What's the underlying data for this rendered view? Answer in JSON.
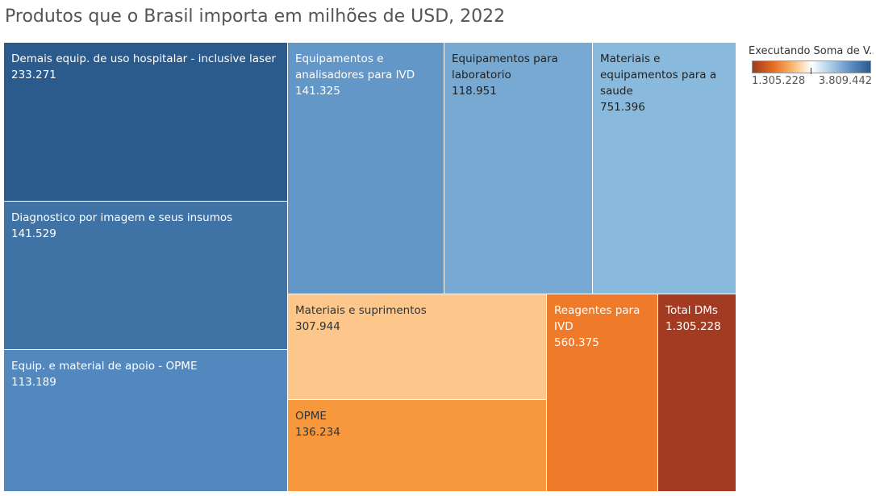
{
  "chart_data": {
    "type": "treemap",
    "title": "Produtos que o Brasil importa em milhões de USD, 2022",
    "tiles": [
      {
        "label": "Demais equip. de uso hospitalar - inclusive laser",
        "value": "233.271",
        "color": "#2b5b8c",
        "text_color": "#ffffff"
      },
      {
        "label": "Diagnostico por imagem e seus insumos",
        "value": "141.529",
        "color": "#3f73a6",
        "text_color": "#ffffff"
      },
      {
        "label": "Equip. e material de apoio - OPME",
        "value": "113.189",
        "color": "#5288bd",
        "text_color": "#ffffff"
      },
      {
        "label": "Equipamentos e analisadores para IVD",
        "value": "141.325",
        "color": "#6397c7",
        "text_color": "#ffffff"
      },
      {
        "label": "Equipamentos para laboratorio",
        "value": "118.951",
        "color": "#77a9d3",
        "text_color": "#222222"
      },
      {
        "label": "Materiais e equipamentos para a saude",
        "value": "751.396",
        "color": "#89b9dc",
        "text_color": "#222222"
      },
      {
        "label": "Materiais e suprimentos",
        "value": "307.944",
        "color": "#fdc68a",
        "text_color": "#333333"
      },
      {
        "label": "OPME",
        "value": "136.234",
        "color": "#f6983b",
        "text_color": "#333333"
      },
      {
        "label": "Reagentes para IVD",
        "value": "560.375",
        "color": "#ee7a2a",
        "text_color": "#ffffff"
      },
      {
        "label": "Total DMs",
        "value": "1.305.228",
        "color": "#a23b22",
        "text_color": "#ffffff"
      }
    ],
    "legend": {
      "title": "Executando Soma de V..",
      "min": "1.305.228",
      "max": "3.809.442",
      "color_stops": [
        "#9e3a1e",
        "#e26a1f",
        "#fbb46a",
        "#ffffff",
        "#a9cae6",
        "#5d8fc2",
        "#2a5a8c"
      ]
    }
  }
}
